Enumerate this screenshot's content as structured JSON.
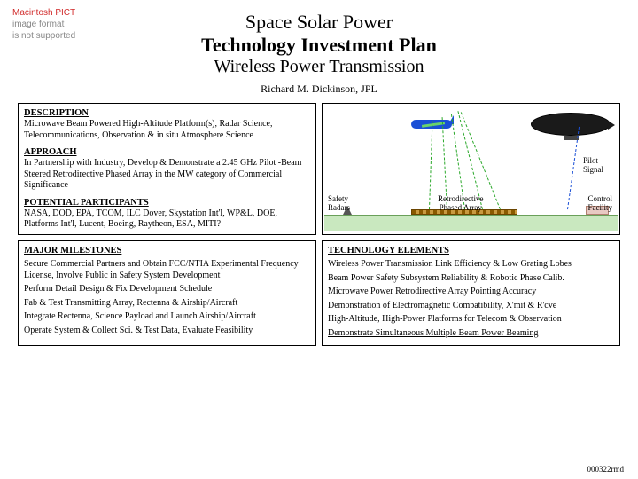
{
  "pict_notice": {
    "l1": "Macintosh PICT",
    "l2": "image format",
    "l3": "is not supported"
  },
  "title": {
    "l1": "Space Solar Power",
    "l2": "Technology Investment Plan",
    "l3": "Wireless Power Transmission"
  },
  "author": "Richard M. Dickinson, JPL",
  "left_top": {
    "h_desc": "DESCRIPTION",
    "desc": "Microwave Beam Powered High-Altitude Platform(s), Radar Science, Telecommunications, Observation & in situ Atmosphere Science",
    "h_app": "APPROACH",
    "app": "In Partnership with Industry, Develop & Demonstrate a 2.45 GHz Pilot -Beam Steered Retrodirective Phased Array in the MW category of Commercial Significance",
    "h_pp": "POTENTIAL PARTICIPANTS",
    "pp": "NASA, DOD, EPA, TCOM, ILC Dover, Skystation Int'l, WP&L, DOE, Platforms Int'l, Lucent, Boeing, Raytheon, ESA, MITI?"
  },
  "diagram": {
    "radar_label": "Safety\nRadars",
    "array_label": "Retrodirective\nPhased Array",
    "control_label": "Control\nFacility",
    "pilot_label": "Pilot\nSignal",
    "colors": {
      "ground": "#c9e8bf",
      "beam": "#2aa82a",
      "plane": "#1a4fd6",
      "balloon": "#1a1a1a",
      "array": "#8a5a00"
    }
  },
  "milestones": {
    "h": "MAJOR MILESTONES",
    "items": [
      "Secure Commercial Partners and Obtain FCC/NTIA Experimental Frequency License, Involve Public in Safety System Development",
      "Perform Detail Design & Fix Development Schedule",
      "Fab & Test Transmitting Array, Rectenna & Airship/Aircraft",
      "Integrate Rectenna, Science Payload and Launch Airship/Aircraft",
      "Operate System & Collect Sci. & Test Data, Evaluate Feasibility"
    ]
  },
  "techel": {
    "h": "TECHNOLOGY ELEMENTS",
    "items": [
      "Wireless Power Transmission Link Efficiency & Low Grating Lobes",
      "Beam Power Safety Subsystem Reliability & Robotic Phase Calib.",
      "Microwave Power Retrodirective Array Pointing Accuracy",
      "Demonstration of Electromagnetic Compatibility, X'mit & R'cve",
      "High-Altitude, High-Power Platforms for Telecom & Observation",
      "Demonstrate Simultaneous Multiple Beam Power Beaming"
    ]
  },
  "footer": "000322rmd"
}
